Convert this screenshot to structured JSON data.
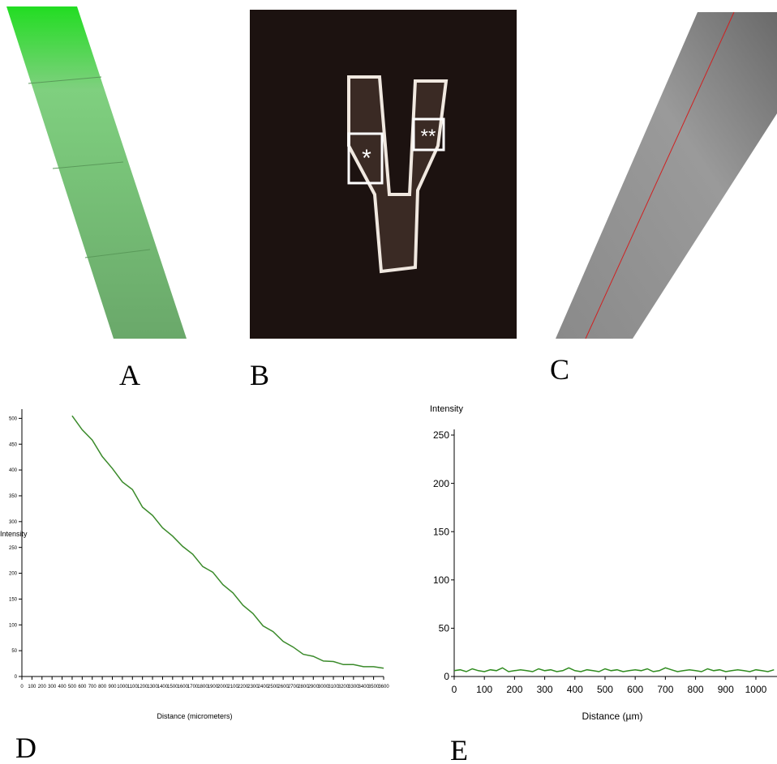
{
  "panel_labels": [
    "A",
    "B",
    "C",
    "D",
    "E"
  ],
  "image_annotations": [
    "*",
    "**"
  ],
  "chart_data": [
    {
      "type": "line",
      "y_label": "Intensity",
      "x_label": "Distance (micrometers)",
      "x": [
        500,
        600,
        700,
        800,
        900,
        1000,
        1100,
        1200,
        1300,
        1400,
        1500,
        1600,
        1700,
        1800,
        1900,
        2000,
        2100,
        2200,
        2300,
        2400,
        2500,
        2600,
        2700,
        2800,
        2900,
        3000,
        3100,
        3200,
        3300,
        3400,
        3500,
        3600
      ],
      "series": [
        {
          "color": "#3a8a2a",
          "values": [
            505,
            478,
            458,
            426,
            403,
            377,
            362,
            328,
            312,
            288,
            272,
            252,
            237,
            213,
            202,
            178,
            162,
            138,
            122,
            98,
            87,
            68,
            57,
            43,
            39,
            30,
            29,
            23,
            23,
            19,
            19,
            16
          ]
        }
      ],
      "xlim": [
        0,
        3600
      ],
      "ylim": [
        0,
        510
      ],
      "xticks": [
        0,
        100,
        200,
        300,
        400,
        500,
        600,
        700,
        800,
        900,
        1000,
        1100,
        1200,
        1300,
        1400,
        1500,
        1600,
        1700,
        1800,
        1900,
        2000,
        2100,
        2200,
        2300,
        2400,
        2500,
        2600,
        2700,
        2800,
        2900,
        3000,
        3100,
        3200,
        3300,
        3400,
        3500,
        3600
      ],
      "yticks": [
        0,
        50,
        100,
        150,
        200,
        250,
        300,
        350,
        400,
        450,
        500
      ]
    },
    {
      "type": "line",
      "y_label": "Intensity",
      "x_label": "Distance (µm)",
      "x": [
        0,
        20,
        40,
        60,
        80,
        100,
        120,
        140,
        160,
        180,
        200,
        220,
        240,
        260,
        280,
        300,
        320,
        340,
        360,
        380,
        400,
        420,
        440,
        460,
        480,
        500,
        520,
        540,
        560,
        580,
        600,
        620,
        640,
        660,
        680,
        700,
        720,
        740,
        760,
        780,
        800,
        820,
        840,
        860,
        880,
        900,
        920,
        940,
        960,
        980,
        1000,
        1020,
        1040,
        1060
      ],
      "series": [
        {
          "color": "#2e8b1e",
          "values": [
            6,
            7,
            5,
            8,
            6,
            5,
            7,
            6,
            9,
            5,
            6,
            7,
            6,
            5,
            8,
            6,
            7,
            5,
            6,
            9,
            6,
            5,
            7,
            6,
            5,
            8,
            6,
            7,
            5,
            6,
            7,
            6,
            8,
            5,
            6,
            9,
            7,
            5,
            6,
            7,
            6,
            5,
            8,
            6,
            7,
            5,
            6,
            7,
            6,
            5,
            7,
            6,
            5,
            7
          ]
        }
      ],
      "xlim": [
        0,
        1070
      ],
      "ylim": [
        0,
        250
      ],
      "xticks": [
        0,
        100,
        200,
        300,
        400,
        500,
        600,
        700,
        800,
        900,
        1000
      ],
      "yticks": [
        0,
        50,
        100,
        150,
        200,
        250
      ]
    }
  ]
}
